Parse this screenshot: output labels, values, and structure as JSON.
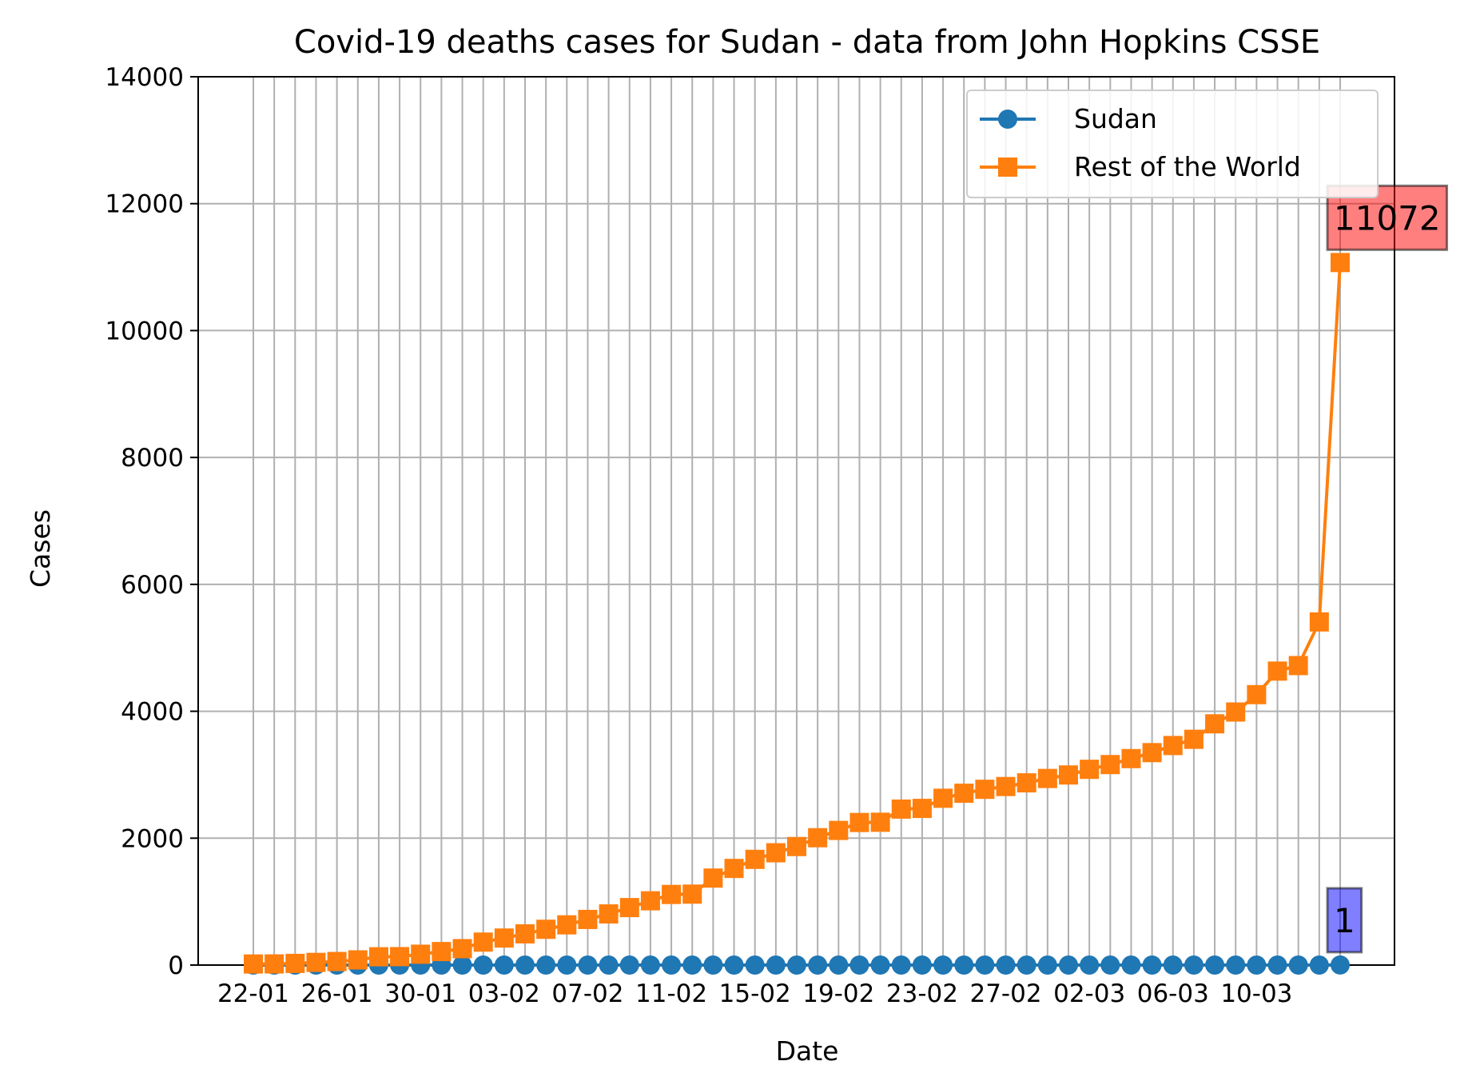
{
  "chart_data": {
    "type": "line",
    "title": "Covid-19 deaths cases for Sudan - data from John Hopkins CSSE",
    "xlabel": "Date",
    "ylabel": "Cases",
    "ylim": [
      0,
      14000
    ],
    "yticks": [
      0,
      2000,
      4000,
      6000,
      8000,
      10000,
      12000,
      14000
    ],
    "grid": true,
    "legend_position": "top-right",
    "x": [
      "22-01",
      "23-01",
      "24-01",
      "25-01",
      "26-01",
      "27-01",
      "28-01",
      "29-01",
      "30-01",
      "31-01",
      "01-02",
      "02-02",
      "03-02",
      "04-02",
      "05-02",
      "06-02",
      "07-02",
      "08-02",
      "09-02",
      "10-02",
      "11-02",
      "12-02",
      "13-02",
      "14-02",
      "15-02",
      "16-02",
      "17-02",
      "18-02",
      "19-02",
      "20-02",
      "21-02",
      "22-02",
      "23-02",
      "24-02",
      "25-02",
      "26-02",
      "27-02",
      "28-02",
      "29-02",
      "01-03",
      "02-03",
      "03-03",
      "04-03",
      "05-03",
      "06-03",
      "07-03",
      "08-03",
      "09-03",
      "10-03",
      "11-03",
      "12-03",
      "13-03",
      "14-03"
    ],
    "xtick_labels": [
      "22-01",
      "26-01",
      "30-01",
      "03-02",
      "07-02",
      "11-02",
      "15-02",
      "19-02",
      "23-02",
      "27-02",
      "02-03",
      "06-03",
      "10-03"
    ],
    "series": [
      {
        "name": "Sudan",
        "color": "#1f77b4",
        "marker": "circle",
        "values": [
          0,
          0,
          0,
          0,
          0,
          0,
          0,
          0,
          0,
          0,
          0,
          0,
          0,
          0,
          0,
          0,
          0,
          0,
          0,
          0,
          0,
          0,
          0,
          0,
          0,
          0,
          0,
          0,
          0,
          0,
          0,
          0,
          0,
          0,
          0,
          0,
          0,
          0,
          0,
          0,
          0,
          0,
          0,
          0,
          0,
          0,
          0,
          0,
          0,
          0,
          0,
          0,
          1
        ]
      },
      {
        "name": "Rest of the World",
        "color": "#ff7f0e",
        "marker": "square",
        "values": [
          17,
          18,
          26,
          42,
          56,
          82,
          131,
          133,
          171,
          213,
          259,
          362,
          426,
          492,
          564,
          634,
          719,
          806,
          906,
          1013,
          1113,
          1118,
          1371,
          1523,
          1666,
          1770,
          1868,
          2007,
          2122,
          2247,
          2251,
          2458,
          2469,
          2629,
          2708,
          2770,
          2814,
          2872,
          2941,
          2996,
          3085,
          3160,
          3254,
          3348,
          3460,
          3558,
          3802,
          3988,
          4262,
          4633,
          4720,
          5408,
          11072
        ]
      }
    ],
    "annotations": [
      {
        "text": "11072",
        "series": "Rest of the World",
        "color": "#ff0000"
      },
      {
        "text": "1",
        "series": "Sudan",
        "color": "#0000ff"
      }
    ]
  }
}
